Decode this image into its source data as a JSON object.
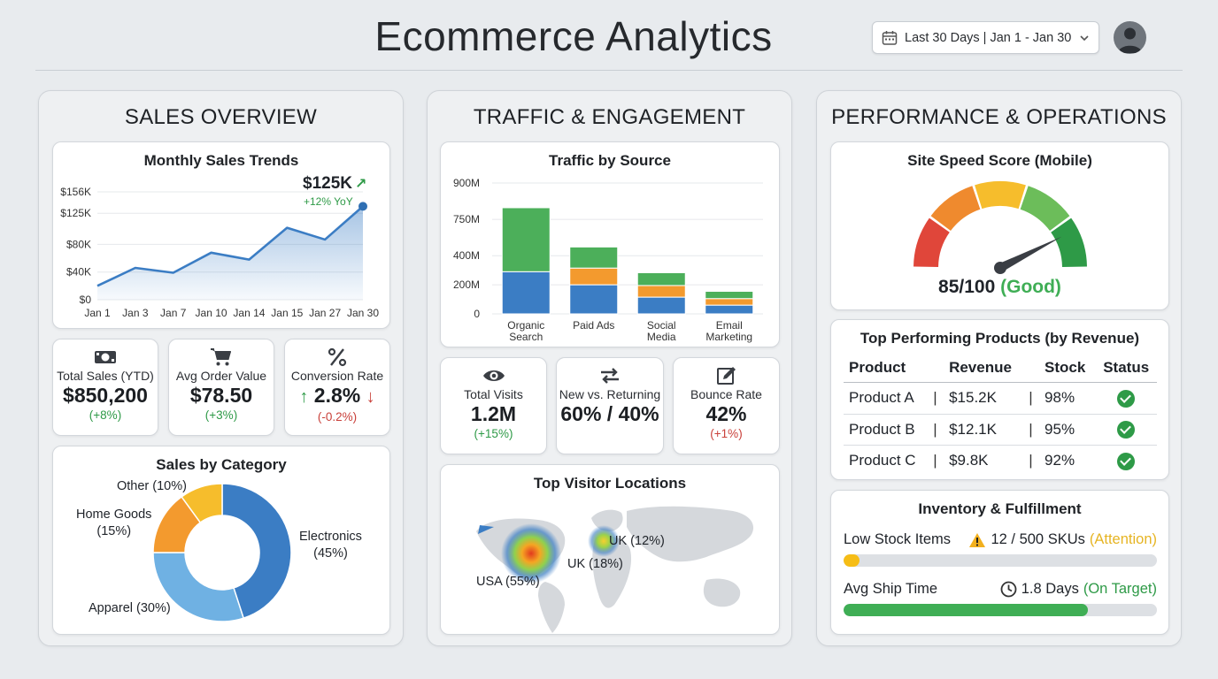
{
  "header": {
    "title": "Ecommerce Analytics",
    "date_range": "Last 30 Days | Jan 1 - Jan 30",
    "calendar_icon": "calendar-icon",
    "chevron_icon": "chevron-down-icon",
    "avatar_icon": "user-avatar-icon"
  },
  "sales": {
    "title": "SALES OVERVIEW",
    "trend": {
      "title": "Monthly Sales Trends",
      "highlight_value": "$125K",
      "highlight_change": "+12% YoY"
    },
    "kpis": [
      {
        "icon": "money-icon",
        "label": "Total Sales (YTD)",
        "value": "$850,200",
        "change": "(+8%)",
        "dir": "up"
      },
      {
        "icon": "cart-icon",
        "label": "Avg Order Value",
        "value": "$78.50",
        "change": "(+3%)",
        "dir": "up"
      },
      {
        "icon": "percent-icon",
        "label": "Conversion Rate",
        "value": "2.8%",
        "change": "(-0.2%)",
        "dir": "down"
      }
    ],
    "category": {
      "title": "Sales by Category",
      "labels": [
        "Electronics",
        "(45%)",
        "Apparel (30%)",
        "Home Goods",
        "(15%)",
        "Other (10%)"
      ]
    }
  },
  "traffic": {
    "title": "TRAFFIC & ENGAGEMENT",
    "source": {
      "title": "Traffic by Source"
    },
    "kpis": [
      {
        "icon": "eye-icon",
        "label": "Total Visits",
        "value": "1.2M",
        "change": "(+15%)",
        "dir": "up"
      },
      {
        "icon": "swap-arrows-icon",
        "label": "New vs. Returning",
        "value": "60% / 40%",
        "change": "",
        "dir": "none"
      },
      {
        "icon": "edit-icon",
        "label": "Bounce Rate",
        "value": "42%",
        "change": "(+1%)",
        "dir": "bad"
      }
    ],
    "locations": {
      "title": "Top Visitor Locations",
      "labels": [
        "USA (55%)",
        "UK (18%)",
        "UK (12%)"
      ]
    }
  },
  "performance": {
    "title": "PERFORMANCE & OPERATIONS",
    "speed": {
      "title": "Site Speed Score (Mobile)",
      "score": "85/100",
      "rating": "(Good)",
      "value": 85,
      "max": 100
    },
    "products": {
      "title": "Top Performing Products (by Revenue)",
      "headers": [
        "Product",
        "Revenue",
        "Stock",
        "Status"
      ],
      "separator": "|",
      "rows": [
        {
          "name": "Product A",
          "revenue": "$15.2K",
          "stock": "98%",
          "status": "check-circle-icon"
        },
        {
          "name": "Product B",
          "revenue": "$12.1K",
          "stock": "95%",
          "status": "check-circle-icon"
        },
        {
          "name": "Product C",
          "revenue": "$9.8K",
          "stock": "92%",
          "status": "check-circle-icon"
        }
      ]
    },
    "inventory": {
      "title": "Inventory & Fulfillment",
      "low_stock_label": "Low Stock Items",
      "low_stock_value": "12 / 500 SKUs",
      "low_stock_status": "(Attention)",
      "low_stock_fraction": 0.024,
      "ship_label": "Avg Ship Time",
      "ship_value": "1.8 Days",
      "ship_status": "(On Target)",
      "ship_fraction": 0.78
    }
  },
  "colors": {
    "blue": "#3b7dc4",
    "orange": "#f39a2e",
    "green": "#4caf5a",
    "light_blue": "#6fb1e3",
    "amber": "#f6bd2c",
    "good_green": "#2e9a47",
    "bad_red": "#c9403a"
  },
  "chart_data": [
    {
      "type": "area",
      "title": "Monthly Sales Trends",
      "categories": [
        "Jan 1",
        "Jan 3",
        "Jan 7",
        "Jan 10",
        "Jan 14",
        "Jan 15",
        "Jan 27",
        "Jan 30"
      ],
      "y_tick_labels": [
        "$0",
        "$40K",
        "$80K",
        "$125K",
        "$156K"
      ],
      "series": [
        {
          "values": [
            20000,
            46000,
            39000,
            68000,
            58000,
            104000,
            87000,
            135000
          ]
        }
      ],
      "ylim": [
        0,
        170000
      ],
      "grid": true
    },
    {
      "type": "bar",
      "title": "Traffic by Source",
      "categories": [
        "Organic Search",
        "Paid Ads",
        "Social Media",
        "Email Marketing"
      ],
      "y_tick_labels": [
        "0",
        "200M",
        "400M",
        "750M",
        "900M"
      ],
      "stacked": true,
      "series": [
        {
          "values": [
            290,
            200,
            115,
            60
          ],
          "color": "#3b7dc4"
        },
        {
          "values": [
            0,
            115,
            80,
            45
          ],
          "color": "#f39a2e"
        },
        {
          "values": [
            440,
            145,
            88,
            50
          ],
          "color": "#4caf5a"
        }
      ],
      "ylim": [
        0,
        900
      ],
      "grid": true
    },
    {
      "type": "pie",
      "title": "Sales by Category",
      "categories": [
        "Electronics",
        "Apparel",
        "Home Goods",
        "Other"
      ],
      "values": [
        45,
        30,
        15,
        10
      ],
      "colors": [
        "#3b7dc4",
        "#6fb1e3",
        "#f39a2e",
        "#f6bd2c"
      ]
    }
  ]
}
